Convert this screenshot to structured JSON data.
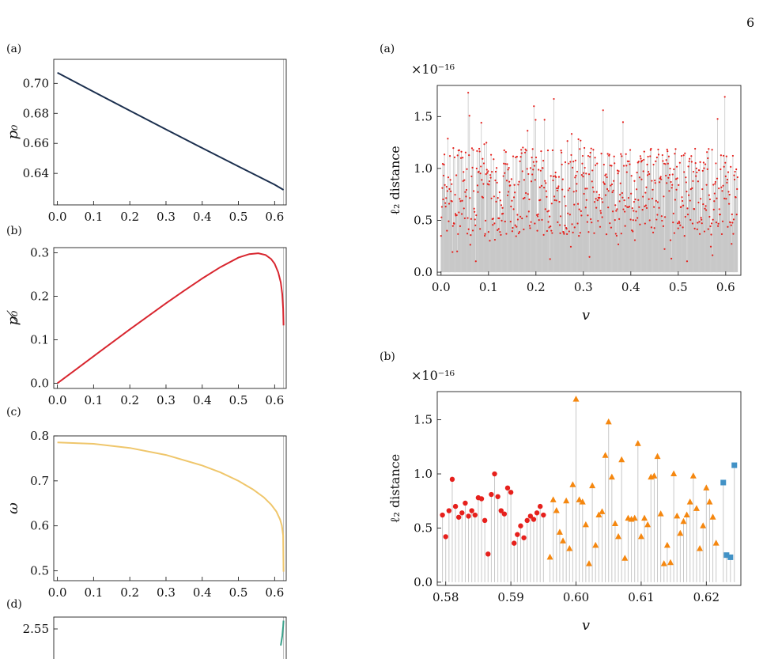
{
  "page_number": "6",
  "chart_data": [
    {
      "id": "left-a",
      "panel_label": "(a)",
      "type": "line",
      "ylabel": "p₀",
      "xlim": [
        -0.01,
        0.632
      ],
      "ylim": [
        0.619,
        0.716
      ],
      "xticks": [
        0.0,
        0.1,
        0.2,
        0.3,
        0.4,
        0.5,
        0.6
      ],
      "xtick_labels": [
        "0.0",
        "0.1",
        "0.2",
        "0.3",
        "0.4",
        "0.5",
        "0.6"
      ],
      "yticks": [
        0.64,
        0.66,
        0.68,
        0.7
      ],
      "ytick_labels": [
        "0.64",
        "0.66",
        "0.68",
        "0.70"
      ],
      "vline": 0.6245,
      "series": [
        {
          "color": "#1b2f4e",
          "x": [
            0.0,
            0.1,
            0.2,
            0.3,
            0.4,
            0.5,
            0.6,
            0.6245
          ],
          "y": [
            0.7071,
            0.6944,
            0.6818,
            0.6693,
            0.6569,
            0.6446,
            0.6325,
            0.629
          ]
        }
      ]
    },
    {
      "id": "left-b",
      "panel_label": "(b)",
      "type": "line",
      "ylabel": "p₀̸",
      "xlim": [
        -0.01,
        0.632
      ],
      "ylim": [
        -0.012,
        0.312
      ],
      "xticks": [
        0.0,
        0.1,
        0.2,
        0.3,
        0.4,
        0.5,
        0.6
      ],
      "xtick_labels": [
        "0.0",
        "0.1",
        "0.2",
        "0.3",
        "0.4",
        "0.5",
        "0.6"
      ],
      "yticks": [
        0.0,
        0.1,
        0.2,
        0.3
      ],
      "ytick_labels": [
        "0.0",
        "0.1",
        "0.2",
        "0.3"
      ],
      "vline": 0.6245,
      "series": [
        {
          "color": "#d8262f",
          "x": [
            0.0,
            0.05,
            0.1,
            0.15,
            0.2,
            0.25,
            0.3,
            0.35,
            0.4,
            0.45,
            0.5,
            0.53,
            0.555,
            0.575,
            0.59,
            0.6,
            0.61,
            0.617,
            0.621,
            0.6235,
            0.6245
          ],
          "y": [
            0.0,
            0.031,
            0.062,
            0.093,
            0.124,
            0.154,
            0.184,
            0.213,
            0.241,
            0.267,
            0.289,
            0.297,
            0.299,
            0.295,
            0.286,
            0.275,
            0.255,
            0.232,
            0.205,
            0.172,
            0.133
          ]
        }
      ]
    },
    {
      "id": "left-c",
      "panel_label": "(c)",
      "type": "line",
      "ylabel": "ω",
      "xlim": [
        -0.01,
        0.632
      ],
      "ylim": [
        0.478,
        0.8
      ],
      "xticks": [
        0.0,
        0.1,
        0.2,
        0.3,
        0.4,
        0.5,
        0.6
      ],
      "xtick_labels": [
        "0.0",
        "0.1",
        "0.2",
        "0.3",
        "0.4",
        "0.5",
        "0.6"
      ],
      "yticks": [
        0.5,
        0.6,
        0.7,
        0.8
      ],
      "ytick_labels": [
        "0.5",
        "0.6",
        "0.7",
        "0.8"
      ],
      "vline": 0.6245,
      "series": [
        {
          "color": "#efc66b",
          "x": [
            0.0,
            0.1,
            0.2,
            0.3,
            0.4,
            0.45,
            0.5,
            0.54,
            0.57,
            0.59,
            0.605,
            0.615,
            0.62,
            0.6235,
            0.6245
          ],
          "y": [
            0.7854,
            0.7824,
            0.7733,
            0.7576,
            0.7342,
            0.7188,
            0.6999,
            0.6811,
            0.6634,
            0.6475,
            0.6316,
            0.6142,
            0.6004,
            0.579,
            0.498
          ]
        }
      ]
    },
    {
      "id": "left-d",
      "panel_label": "(d)",
      "type": "line",
      "xlim": [
        -0.01,
        0.632
      ],
      "ylim": [
        2.4,
        2.6
      ],
      "yticks": [
        2.55
      ],
      "ytick_labels": [
        "2.55"
      ],
      "vline": 0.6245,
      "series": [
        {
          "color": "#3aa18a",
          "x": [
            0.617,
            0.621,
            0.6235,
            0.6245
          ],
          "y": [
            2.48,
            2.52,
            2.56,
            2.585
          ]
        }
      ]
    },
    {
      "id": "right-a",
      "panel_label": "(a)",
      "type": "scatter",
      "xlabel": "v",
      "ylabel": "ℓ₂ distance",
      "scale_note": "×10⁻¹⁶",
      "xlim": [
        -0.008,
        0.632
      ],
      "ylim": [
        -0.03,
        1.8
      ],
      "xticks": [
        0.0,
        0.1,
        0.2,
        0.3,
        0.4,
        0.5,
        0.6
      ],
      "xtick_labels": [
        "0.0",
        "0.1",
        "0.2",
        "0.3",
        "0.4",
        "0.5",
        "0.6"
      ],
      "yticks": [
        0.0,
        0.5,
        1.0,
        1.5
      ],
      "ytick_labels": [
        "0.0",
        "0.5",
        "1.0",
        "1.5"
      ],
      "n_points": 700,
      "x_range": [
        0.0,
        0.625
      ],
      "y_range": [
        0.0,
        1.73
      ],
      "peaks": [
        {
          "x": 0.057,
          "y": 1.73
        },
        {
          "x": 0.238,
          "y": 1.67
        },
        {
          "x": 0.598,
          "y": 1.69
        },
        {
          "x": 0.196,
          "y": 1.6
        }
      ],
      "series": [
        {
          "color": "#e6201c",
          "stem_color": "#c8c8c8"
        }
      ]
    },
    {
      "id": "right-b",
      "panel_label": "(b)",
      "type": "scatter",
      "xlabel": "v",
      "ylabel": "ℓ₂ distance",
      "scale_note": "×10⁻¹⁶",
      "xlim": [
        0.5787,
        0.6253
      ],
      "ylim": [
        -0.03,
        1.76
      ],
      "xticks": [
        0.58,
        0.59,
        0.6,
        0.61,
        0.62
      ],
      "xtick_labels": [
        "0.58",
        "0.59",
        "0.60",
        "0.61",
        "0.62"
      ],
      "yticks": [
        0.0,
        0.5,
        1.0,
        1.5
      ],
      "ytick_labels": [
        "0.0",
        "0.5",
        "1.0",
        "1.5"
      ],
      "series": [
        {
          "marker": "circle",
          "color": "#e6201c",
          "x": [
            0.5795,
            0.58,
            0.5805,
            0.581,
            0.5815,
            0.582,
            0.5825,
            0.583,
            0.5835,
            0.584,
            0.5845,
            0.585,
            0.5855,
            0.586,
            0.5865,
            0.587,
            0.5875,
            0.588,
            0.5885,
            0.589,
            0.5895,
            0.59,
            0.5905,
            0.591,
            0.5915,
            0.592,
            0.5925,
            0.593,
            0.5935,
            0.594,
            0.5945,
            0.595
          ],
          "y": [
            0.62,
            0.42,
            0.66,
            0.95,
            0.7,
            0.6,
            0.64,
            0.73,
            0.61,
            0.66,
            0.62,
            0.78,
            0.77,
            0.57,
            0.26,
            0.81,
            1.0,
            0.79,
            0.66,
            0.63,
            0.87,
            0.83,
            0.36,
            0.44,
            0.52,
            0.41,
            0.57,
            0.61,
            0.58,
            0.64,
            0.7,
            0.62
          ]
        },
        {
          "marker": "triangle",
          "color": "#f5870f",
          "x": [
            0.596,
            0.5965,
            0.597,
            0.5975,
            0.598,
            0.5985,
            0.599,
            0.5995,
            0.6,
            0.6005,
            0.601,
            0.6015,
            0.602,
            0.6025,
            0.603,
            0.6035,
            0.604,
            0.6045,
            0.605,
            0.6055,
            0.606,
            0.6065,
            0.607,
            0.6075,
            0.608,
            0.6085,
            0.609,
            0.6095,
            0.61,
            0.6105,
            0.611,
            0.6115,
            0.612,
            0.6125,
            0.613,
            0.6135,
            0.614,
            0.6145,
            0.615,
            0.6155,
            0.616,
            0.6165,
            0.617,
            0.6175,
            0.618,
            0.6185,
            0.619,
            0.6195,
            0.62,
            0.6205,
            0.621,
            0.6215
          ],
          "y": [
            0.23,
            0.76,
            0.66,
            0.46,
            0.38,
            0.75,
            0.31,
            0.9,
            1.69,
            0.76,
            0.74,
            0.53,
            0.17,
            0.89,
            0.34,
            0.62,
            0.65,
            1.17,
            1.48,
            0.97,
            0.54,
            0.42,
            1.13,
            0.22,
            0.59,
            0.58,
            0.59,
            1.28,
            0.42,
            0.59,
            0.53,
            0.97,
            0.98,
            1.16,
            0.63,
            0.17,
            0.34,
            0.18,
            1.0,
            0.61,
            0.45,
            0.56,
            0.62,
            0.74,
            0.98,
            0.68,
            0.31,
            0.52,
            0.87,
            0.74,
            0.6,
            0.36
          ]
        },
        {
          "marker": "square",
          "color": "#4292c6",
          "x": [
            0.6226,
            0.6231,
            0.6237,
            0.6243
          ],
          "y": [
            0.92,
            0.25,
            0.23,
            1.08
          ]
        }
      ]
    }
  ]
}
